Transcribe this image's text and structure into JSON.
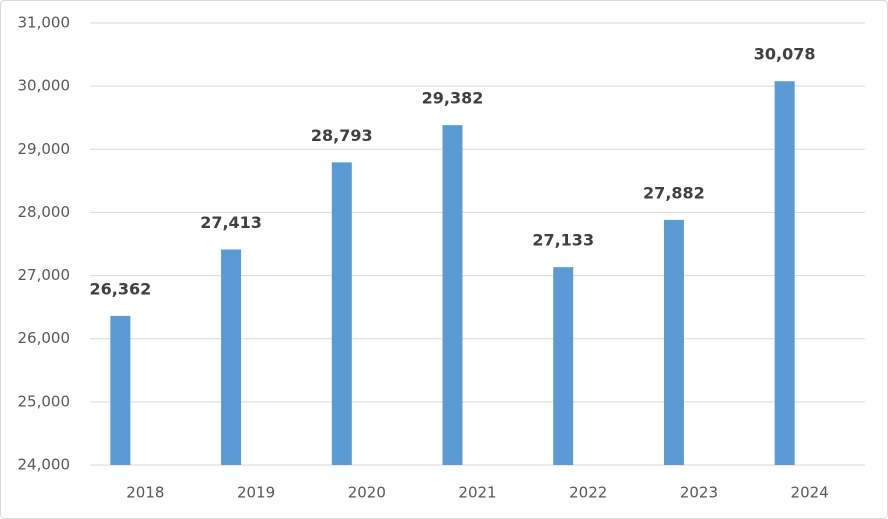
{
  "chart_data": {
    "type": "bar",
    "categories": [
      "2018",
      "2019",
      "2020",
      "2021",
      "2022",
      "2023",
      "2024"
    ],
    "values": [
      26362,
      27413,
      28793,
      29382,
      27133,
      27882,
      30078
    ],
    "value_labels": [
      "26,362",
      "27,413",
      "28,793",
      "29,382",
      "27,133",
      "27,882",
      "30,078"
    ],
    "color": "#5b9bd5",
    "ylim": [
      24000,
      31000
    ],
    "yticks": [
      {
        "value": 24000,
        "label": "24,000"
      },
      {
        "value": 25000,
        "label": "25,000"
      },
      {
        "value": 26000,
        "label": "26,000"
      },
      {
        "value": 27000,
        "label": "27,000"
      },
      {
        "value": 28000,
        "label": "28,000"
      },
      {
        "value": 29000,
        "label": "29,000"
      },
      {
        "value": 30000,
        "label": "30,000"
      },
      {
        "value": 31000,
        "label": "31,000"
      }
    ],
    "grid": true
  }
}
